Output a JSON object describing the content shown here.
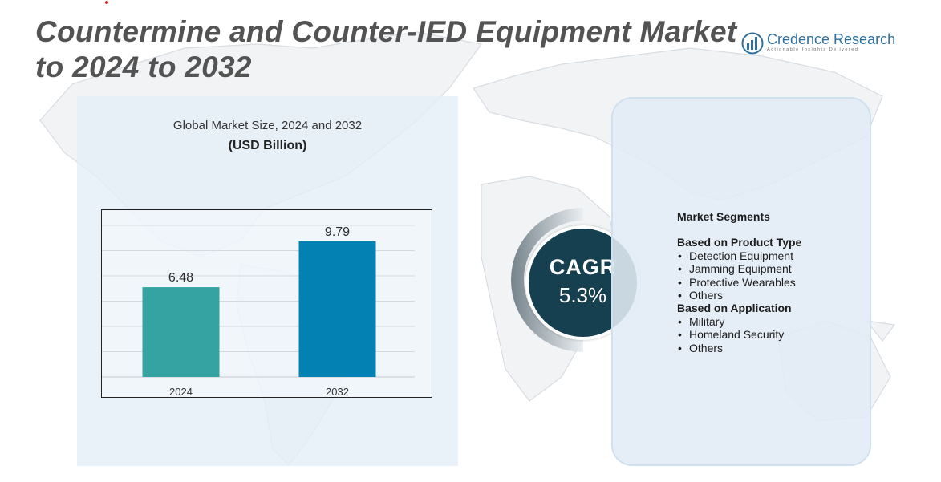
{
  "header": {
    "title": "Countermine and Counter-IED Equipment Market to 2024 to 2032"
  },
  "brand": {
    "name": "Credence Research",
    "tagline": "Actionable Insights Delivered",
    "logo_icon": "bar-chart-globe-icon",
    "color": "#2f6f9c"
  },
  "chart_panel": {
    "title": "Global Market Size,  2024 and 2032",
    "unit": "(USD Billion)"
  },
  "chart_data": {
    "type": "bar",
    "title": "Global Market Size, 2024 and 2032",
    "ylabel": "(USD Billion)",
    "xlabel": "",
    "categories": [
      "2024",
      "2032"
    ],
    "values": [
      6.48,
      9.79
    ],
    "data_labels": [
      "6.48",
      "9.79"
    ],
    "colors": [
      "#35a3a1",
      "#0381b2"
    ],
    "ylim": [
      0,
      11
    ],
    "grid": true,
    "legend": "none"
  },
  "cagr": {
    "label": "CAGR",
    "value": "5.3%",
    "color": "#16404f"
  },
  "segments": {
    "heading": "Market Segments",
    "groups": [
      {
        "title": "Based on Product Type",
        "items": [
          "Detection Equipment",
          "Jamming Equipment",
          "Protective Wearables",
          "Others"
        ]
      },
      {
        "title": "Based on Application",
        "items": [
          "Military",
          "Homeland Security",
          "Others"
        ]
      }
    ]
  }
}
